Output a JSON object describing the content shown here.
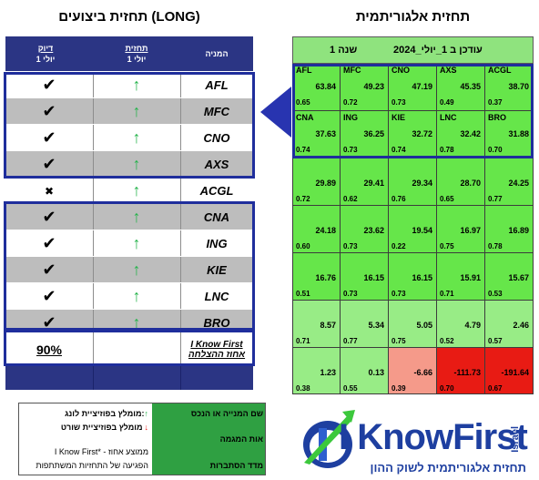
{
  "titles": {
    "left": "תחזית ביצועים (LONG)",
    "right": "תחזית אלגוריתמית"
  },
  "left_table": {
    "headers": {
      "accuracy_line1": "דיוק",
      "accuracy_line2": "1 יולי",
      "forecast_line1": "תחזית",
      "forecast_line2": "1 יולי",
      "stock": "המניה"
    },
    "rows": [
      {
        "ticker": "AFL",
        "accuracy": "✔",
        "forecast": "↑"
      },
      {
        "ticker": "MFC",
        "accuracy": "✔",
        "forecast": "↑"
      },
      {
        "ticker": "CNO",
        "accuracy": "✔",
        "forecast": "↑"
      },
      {
        "ticker": "AXS",
        "accuracy": "✔",
        "forecast": "↑"
      },
      {
        "ticker": "ACGL",
        "accuracy": "✖",
        "forecast": "↑"
      },
      {
        "ticker": "CNA",
        "accuracy": "✔",
        "forecast": "↑"
      },
      {
        "ticker": "ING",
        "accuracy": "✔",
        "forecast": "↑"
      },
      {
        "ticker": "KIE",
        "accuracy": "✔",
        "forecast": "↑"
      },
      {
        "ticker": "LNC",
        "accuracy": "✔",
        "forecast": "↑"
      },
      {
        "ticker": "BRO",
        "accuracy": "✔",
        "forecast": "↑"
      }
    ],
    "summary": {
      "percent": "90%",
      "label_line1": "I Know First",
      "label_line2": "אחוז ההצלחה"
    }
  },
  "right_grid": {
    "header_left": "עודכן ב 1_יולי_2024",
    "header_right": "1 שנה",
    "cells": [
      [
        {
          "t": "AFL",
          "s": "63.84",
          "p": "0.65"
        },
        {
          "t": "MFC",
          "s": "49.23",
          "p": "0.72"
        },
        {
          "t": "CNO",
          "s": "47.19",
          "p": "0.73"
        },
        {
          "t": "AXS",
          "s": "45.35",
          "p": "0.49"
        },
        {
          "t": "ACGL",
          "s": "38.70",
          "p": "0.37"
        }
      ],
      [
        {
          "t": "CNA",
          "s": "37.63",
          "p": "0.74"
        },
        {
          "t": "ING",
          "s": "36.25",
          "p": "0.73"
        },
        {
          "t": "KIE",
          "s": "32.72",
          "p": "0.74"
        },
        {
          "t": "LNC",
          "s": "32.42",
          "p": "0.78"
        },
        {
          "t": "BRO",
          "s": "31.88",
          "p": "0.70"
        }
      ],
      [
        {
          "t": "",
          "s": "29.89",
          "p": "0.72"
        },
        {
          "t": "",
          "s": "29.41",
          "p": "0.62"
        },
        {
          "t": "",
          "s": "29.34",
          "p": "0.76"
        },
        {
          "t": "",
          "s": "28.70",
          "p": "0.65"
        },
        {
          "t": "",
          "s": "24.25",
          "p": "0.77"
        }
      ],
      [
        {
          "t": "",
          "s": "24.18",
          "p": "0.60"
        },
        {
          "t": "",
          "s": "23.62",
          "p": "0.73"
        },
        {
          "t": "",
          "s": "19.54",
          "p": "0.22"
        },
        {
          "t": "",
          "s": "16.97",
          "p": "0.75"
        },
        {
          "t": "",
          "s": "16.89",
          "p": "0.78"
        }
      ],
      [
        {
          "t": "",
          "s": "16.76",
          "p": "0.51"
        },
        {
          "t": "",
          "s": "16.15",
          "p": "0.73"
        },
        {
          "t": "",
          "s": "16.15",
          "p": "0.73"
        },
        {
          "t": "",
          "s": "15.91",
          "p": "0.71"
        },
        {
          "t": "",
          "s": "15.67",
          "p": "0.53"
        }
      ],
      [
        {
          "t": "",
          "s": "8.57",
          "p": "0.71"
        },
        {
          "t": "",
          "s": "5.34",
          "p": "0.77"
        },
        {
          "t": "",
          "s": "5.05",
          "p": "0.75"
        },
        {
          "t": "",
          "s": "4.79",
          "p": "0.52"
        },
        {
          "t": "",
          "s": "2.46",
          "p": "0.57"
        }
      ],
      [
        {
          "t": "",
          "s": "1.23",
          "p": "0.38"
        },
        {
          "t": "",
          "s": "0.13",
          "p": "0.55"
        },
        {
          "t": "",
          "s": "-6.66",
          "p": "0.39"
        },
        {
          "t": "",
          "s": "-111.73",
          "p": "0.70"
        },
        {
          "t": "",
          "s": "-191.64",
          "p": "0.67"
        }
      ]
    ],
    "colors": {
      "bright_green": "#66e64a",
      "light_green": "#98ec86",
      "pink": "#f59a8a",
      "red": "#e81b14"
    }
  },
  "legend": {
    "long_label": "מומלץ בפוזיציית לונג:",
    "long_arrow": "↑",
    "short_label": "מומלץ בפוזיציית שורט",
    "short_arrow": "↓",
    "accuracy_line1": "I Know First* - ממוצע אחוז",
    "accuracy_line2": "הפגיעה של התחזיות המשתתפות",
    "green_top": "שם המנייה או הנכס",
    "green_mid": "אות המגמה",
    "green_bottom": "מדד הסתברות"
  },
  "logo": {
    "brand": "I KnowFirst",
    "side": "Israel",
    "tagline": "תחזית אלגוריתמית לשוק ההון"
  }
}
